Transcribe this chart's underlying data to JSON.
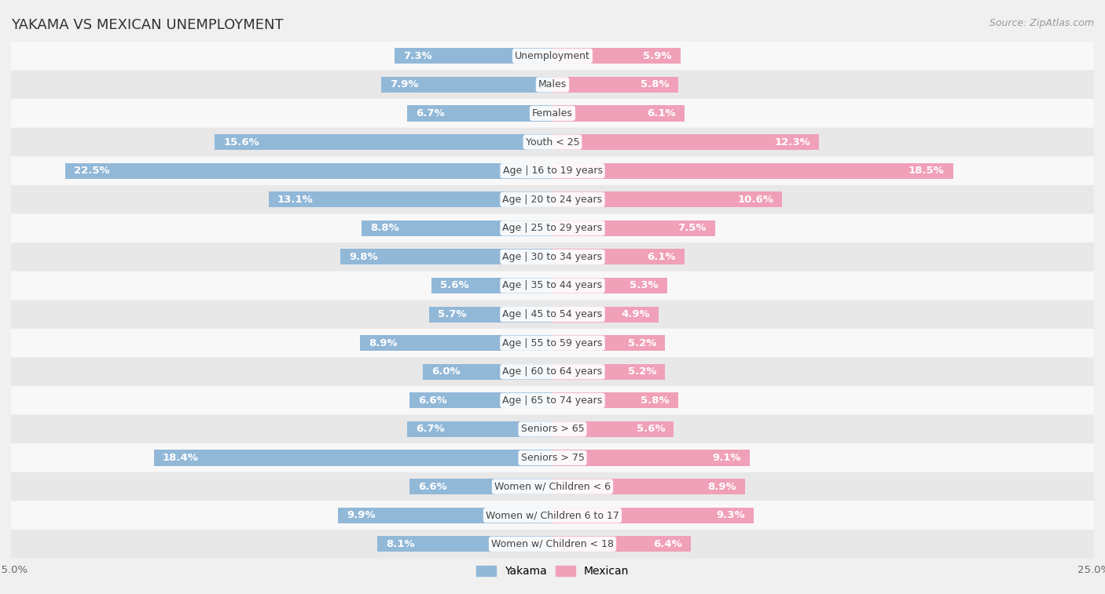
{
  "title": "YAKAMA VS MEXICAN UNEMPLOYMENT",
  "source": "Source: ZipAtlas.com",
  "categories": [
    "Unemployment",
    "Males",
    "Females",
    "Youth < 25",
    "Age | 16 to 19 years",
    "Age | 20 to 24 years",
    "Age | 25 to 29 years",
    "Age | 30 to 34 years",
    "Age | 35 to 44 years",
    "Age | 45 to 54 years",
    "Age | 55 to 59 years",
    "Age | 60 to 64 years",
    "Age | 65 to 74 years",
    "Seniors > 65",
    "Seniors > 75",
    "Women w/ Children < 6",
    "Women w/ Children 6 to 17",
    "Women w/ Children < 18"
  ],
  "yakama": [
    7.3,
    7.9,
    6.7,
    15.6,
    22.5,
    13.1,
    8.8,
    9.8,
    5.6,
    5.7,
    8.9,
    6.0,
    6.6,
    6.7,
    18.4,
    6.6,
    9.9,
    8.1
  ],
  "mexican": [
    5.9,
    5.8,
    6.1,
    12.3,
    18.5,
    10.6,
    7.5,
    6.1,
    5.3,
    4.9,
    5.2,
    5.2,
    5.8,
    5.6,
    9.1,
    8.9,
    9.3,
    6.4
  ],
  "yakama_color": "#92b8d8",
  "mexican_color": "#f0a0b8",
  "bar_height": 0.55,
  "xlim": 25,
  "background_color": "#f0f0f0",
  "row_bg_light": "#f8f8f8",
  "row_bg_dark": "#e8e8e8",
  "title_fontsize": 13,
  "label_fontsize": 9.5,
  "category_fontsize": 9,
  "source_fontsize": 9,
  "inside_threshold": 3.0
}
